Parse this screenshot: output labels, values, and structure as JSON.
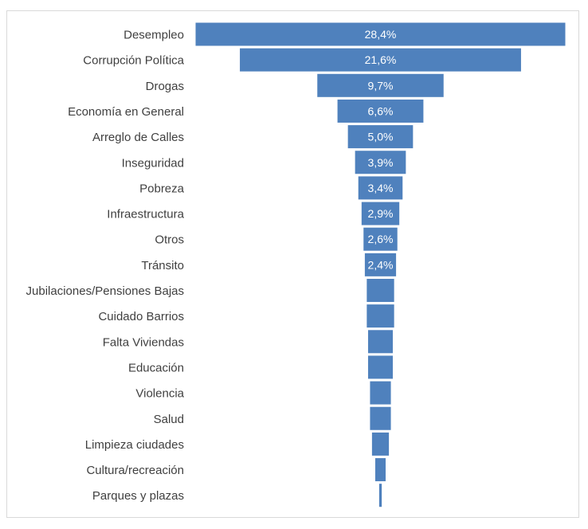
{
  "chart_data": {
    "type": "funnel",
    "title": "",
    "categories": [
      "Desempleo",
      "Corrupción Política",
      "Drogas",
      "Economía en General",
      "Arreglo de Calles",
      "Inseguridad",
      "Pobreza",
      "Infraestructura",
      "Otros",
      "Tránsito",
      "Jubilaciones/Pensiones Bajas",
      "Cuidado Barrios",
      "Falta Viviendas",
      "Educación",
      "Violencia",
      "Salud",
      "Limpieza ciudades",
      "Cultura/recreación",
      "Parques y plazas"
    ],
    "values": [
      28.4,
      21.6,
      9.7,
      6.6,
      5.0,
      3.9,
      3.4,
      2.9,
      2.6,
      2.4,
      2.1,
      2.1,
      1.9,
      1.9,
      1.6,
      1.6,
      1.3,
      0.8,
      0.2
    ],
    "data_labels": [
      "28,4%",
      "21,6%",
      "9,7%",
      "6,6%",
      "5,0%",
      "3,9%",
      "3,4%",
      "2,9%",
      "2,6%",
      "2,4%",
      "",
      "",
      "",
      "",
      "",
      "",
      "",
      "",
      ""
    ],
    "unit": "%",
    "bar_color": "#4f81bd",
    "label_color": "#404040",
    "data_label_color": "#ffffff"
  }
}
